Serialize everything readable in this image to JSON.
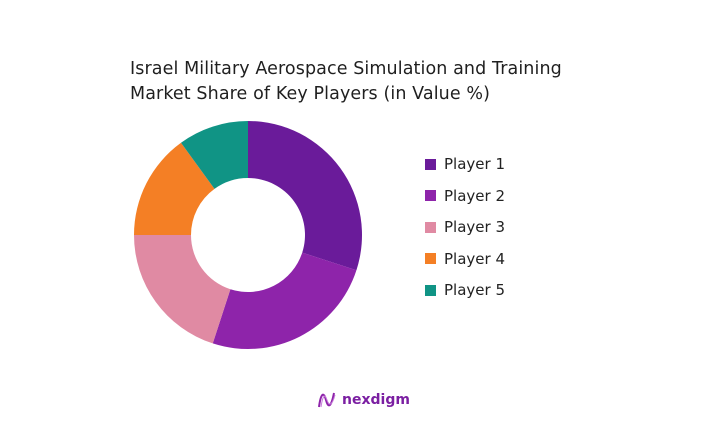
{
  "chart_data": {
    "type": "pie",
    "donut": true,
    "title_lines": [
      "Israel Military Aerospace Simulation and Training",
      "Market Share of Key Players (in Value %)"
    ],
    "categories": [
      "Player 1",
      "Player 2",
      "Player 3",
      "Player 4",
      "Player 5"
    ],
    "values": [
      30,
      25,
      20,
      15,
      10
    ],
    "colors": [
      "#6a1b9a",
      "#8e24aa",
      "#e08aa3",
      "#f47f25",
      "#109485"
    ],
    "legend_position": "right"
  },
  "logo": {
    "text": "nexdigm"
  }
}
